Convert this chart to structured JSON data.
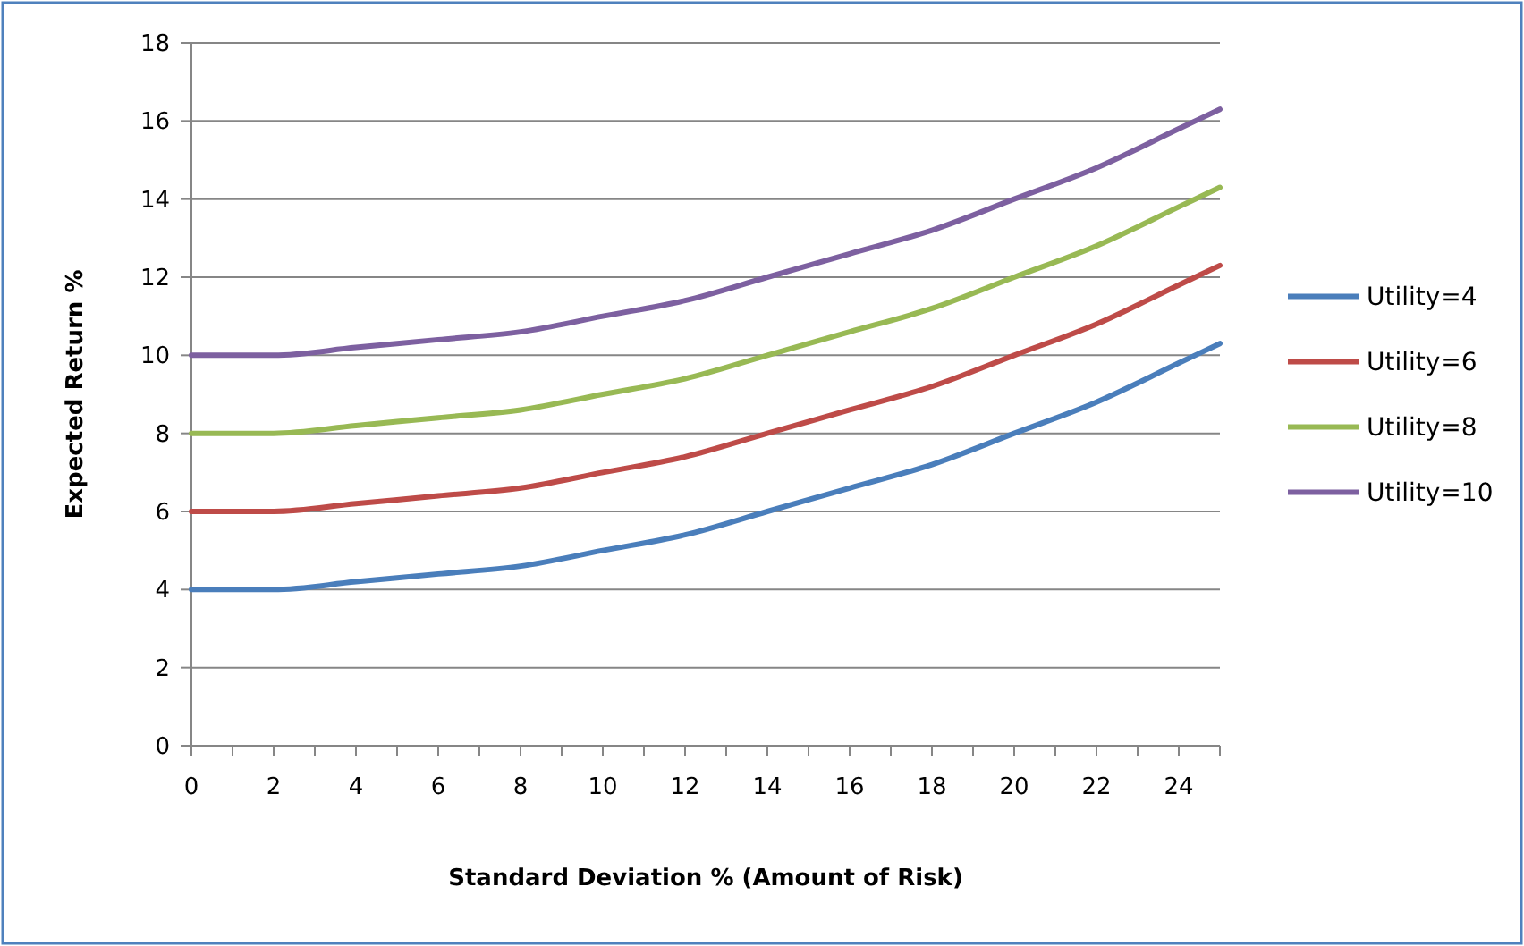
{
  "chart_data": {
    "type": "line",
    "xlabel": "Standard Deviation % (Amount of Risk)",
    "ylabel": "Expected Return %",
    "x": [
      0,
      2,
      4,
      6,
      8,
      10,
      12,
      14,
      16,
      18,
      20,
      22,
      24,
      25
    ],
    "series": [
      {
        "name": "Utility=4",
        "color": "#4a7ebb",
        "values": [
          4,
          4,
          4.2,
          4.4,
          4.6,
          5,
          5.4,
          6,
          6.6,
          7.2,
          8,
          8.8,
          9.8,
          10.3
        ]
      },
      {
        "name": "Utility=6",
        "color": "#be4b48",
        "values": [
          6,
          6,
          6.2,
          6.4,
          6.6,
          7,
          7.4,
          8,
          8.6,
          9.2,
          10,
          10.8,
          11.8,
          12.3
        ]
      },
      {
        "name": "Utility=8",
        "color": "#98b954",
        "values": [
          8,
          8,
          8.2,
          8.4,
          8.6,
          9,
          9.4,
          10,
          10.6,
          11.2,
          12,
          12.8,
          13.8,
          14.3
        ]
      },
      {
        "name": "Utility=10",
        "color": "#7d60a0",
        "values": [
          10,
          10,
          10.2,
          10.4,
          10.6,
          11,
          11.4,
          12,
          12.6,
          13.2,
          14,
          14.8,
          15.8,
          16.3
        ]
      }
    ],
    "xlim": [
      0,
      25
    ],
    "xticks": [
      0,
      {
        "value": 1,
        "label": null
      },
      2,
      {
        "value": 3,
        "label": null
      },
      4,
      {
        "value": 5,
        "label": null
      },
      6,
      {
        "value": 7,
        "label": null
      },
      8,
      {
        "value": 9,
        "label": null
      },
      10,
      {
        "value": 11,
        "label": null
      },
      12,
      {
        "value": 13,
        "label": null
      },
      14,
      {
        "value": 15,
        "label": null
      },
      16,
      {
        "value": 17,
        "label": null
      },
      18,
      {
        "value": 19,
        "label": null
      },
      20,
      {
        "value": 21,
        "label": null
      },
      22,
      {
        "value": 23,
        "label": null
      },
      24,
      {
        "value": 25,
        "label": null
      }
    ],
    "ylim": [
      0,
      18
    ],
    "yticks": [
      0,
      2,
      4,
      6,
      8,
      10,
      12,
      14,
      16,
      18
    ],
    "grid": "y",
    "legend": "right",
    "marker": "none",
    "line_style": "solid"
  }
}
